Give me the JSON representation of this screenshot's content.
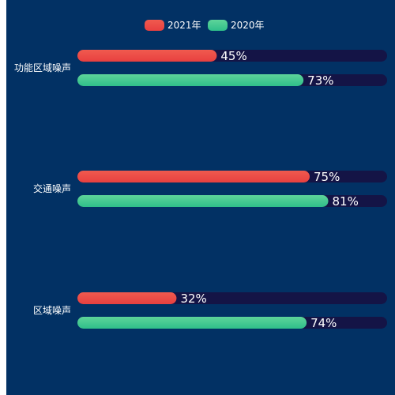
{
  "colors": {
    "background": "#023164",
    "track": "#141446",
    "series_2021": [
      "#f05a4f",
      "#e84040"
    ],
    "series_2020": [
      "#5ed49a",
      "#2fbf8a"
    ]
  },
  "chart_data": {
    "type": "bar",
    "orientation": "horizontal",
    "unit": "%",
    "xlim": [
      0,
      100
    ],
    "grid": false,
    "legend_position": "top-center",
    "categories": [
      "功能区域噪声",
      "交通噪声",
      "区域噪声"
    ],
    "series": [
      {
        "name": "2021年",
        "values": [
          45,
          75,
          32
        ]
      },
      {
        "name": "2020年",
        "values": [
          73,
          81,
          74
        ]
      }
    ]
  }
}
